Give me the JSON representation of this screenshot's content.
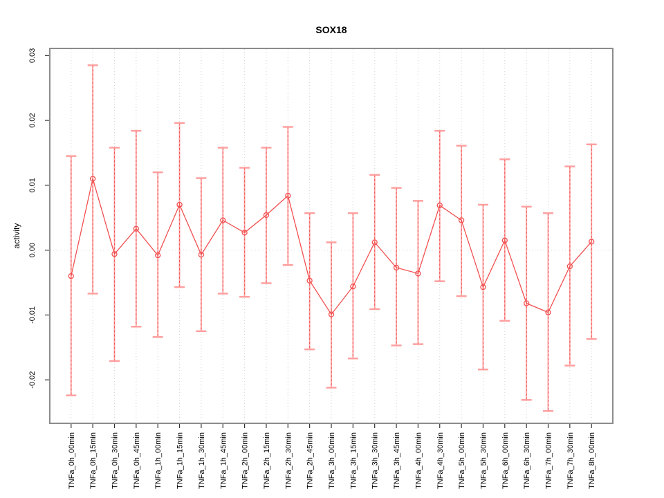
{
  "figure": {
    "title": "SOX18",
    "background": "#ffffff"
  },
  "chart_data": {
    "type": "line",
    "title": "SOX18",
    "xlabel": "",
    "ylabel": "activity",
    "legend": "none",
    "grid": {
      "vertical_dotted_per_category": true,
      "horizontal_dotted_at_zero": true
    },
    "ylim": [
      -0.0267,
      0.0311
    ],
    "y_ticks": [
      "-0.02",
      "-0.01",
      "0.00",
      "0.01",
      "0.02",
      "0.03"
    ],
    "y_tick_values": [
      -0.02,
      -0.01,
      0.0,
      0.01,
      0.02,
      0.03
    ],
    "categories": [
      "TNFa_0h_00min",
      "TNFa_0h_15min",
      "TNFa_0h_30min",
      "TNFa_0h_45min",
      "TNFa_1h_00min",
      "TNFa_1h_15min",
      "TNFa_1h_30min",
      "TNFa_1h_45min",
      "TNFa_2h_00min",
      "TNFa_2h_15min",
      "TNFa_2h_30min",
      "TNFa_2h_45min",
      "TNFa_3h_00min",
      "TNFa_3h_15min",
      "TNFa_3h_30min",
      "TNFa_3h_45min",
      "TNFa_4h_00min",
      "TNFa_4h_30min",
      "TNFa_5h_00min",
      "TNFa_5h_30min",
      "TNFa_6h_00min",
      "TNFa_6h_30min",
      "TNFa_7h_00min",
      "TNFa_7h_30min",
      "TNFa_8h_00min"
    ],
    "series": [
      {
        "name": "activity",
        "values": [
          -0.004,
          0.011,
          -0.0006,
          0.0033,
          -0.0008,
          0.007,
          -0.0007,
          0.0046,
          0.0027,
          0.0054,
          0.0084,
          -0.0047,
          -0.0099,
          -0.0056,
          0.0012,
          -0.0027,
          -0.0036,
          0.0069,
          0.0046,
          -0.0057,
          0.0015,
          -0.0082,
          -0.0096,
          -0.0025,
          0.0013
        ],
        "error_upper": [
          0.0145,
          0.0285,
          0.0158,
          0.0184,
          0.012,
          0.0196,
          0.0111,
          0.0158,
          0.0127,
          0.0158,
          0.019,
          0.0057,
          0.0012,
          0.0057,
          0.0116,
          0.0096,
          0.0076,
          0.0184,
          0.0161,
          0.007,
          0.014,
          0.0067,
          0.0057,
          0.0129,
          0.0163
        ],
        "error_lower": [
          -0.0224,
          -0.0067,
          -0.0171,
          -0.0118,
          -0.0134,
          -0.0057,
          -0.0125,
          -0.0067,
          -0.0072,
          -0.0051,
          -0.0023,
          -0.0153,
          -0.0212,
          -0.0167,
          -0.0091,
          -0.0147,
          -0.0145,
          -0.0048,
          -0.0071,
          -0.0184,
          -0.0109,
          -0.0231,
          -0.0248,
          -0.0178,
          -0.0137
        ]
      }
    ],
    "colors": {
      "line": "#f25050",
      "point": "#f25050",
      "error_bar_solid": "#ffaaaa",
      "error_bar_cap": "#ff9f9f",
      "error_bar_dash": "#f25050",
      "grid": "#d2d2d2",
      "border": "#8c8c8c",
      "tick": "#333333",
      "text": "#000000"
    }
  }
}
